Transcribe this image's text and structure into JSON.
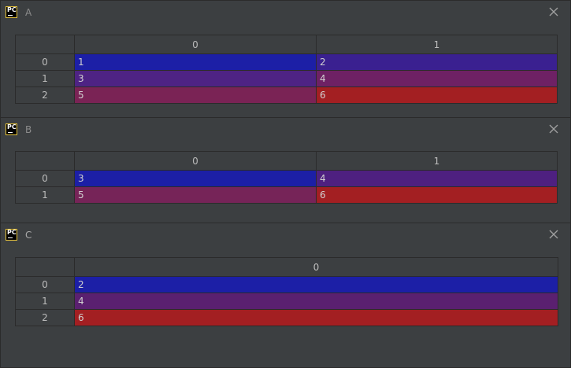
{
  "windows": [
    {
      "title": "A",
      "columns": [
        "0",
        "1"
      ],
      "rows": [
        {
          "index": "0",
          "cells": [
            {
              "value": "1",
              "color": "#1c1fa6"
            },
            {
              "value": "2",
              "color": "#3a2090"
            }
          ]
        },
        {
          "index": "1",
          "cells": [
            {
              "value": "3",
              "color": "#4e2384"
            },
            {
              "value": "4",
              "color": "#6e2164"
            }
          ]
        },
        {
          "index": "2",
          "cells": [
            {
              "value": "5",
              "color": "#7a2355"
            },
            {
              "value": "6",
              "color": "#a31f22"
            }
          ]
        }
      ]
    },
    {
      "title": "B",
      "columns": [
        "0",
        "1"
      ],
      "rows": [
        {
          "index": "0",
          "cells": [
            {
              "value": "3",
              "color": "#1c1fa6"
            },
            {
              "value": "4",
              "color": "#4e2080"
            }
          ]
        },
        {
          "index": "1",
          "cells": [
            {
              "value": "5",
              "color": "#762458"
            },
            {
              "value": "6",
              "color": "#a31f22"
            }
          ]
        }
      ]
    },
    {
      "title": "C",
      "columns": [
        "0"
      ],
      "rows": [
        {
          "index": "0",
          "cells": [
            {
              "value": "2",
              "color": "#1c1fa6"
            }
          ]
        },
        {
          "index": "1",
          "cells": [
            {
              "value": "4",
              "color": "#5a2070"
            }
          ]
        },
        {
          "index": "2",
          "cells": [
            {
              "value": "6",
              "color": "#a31f22"
            }
          ]
        }
      ]
    }
  ],
  "icons": {
    "app": "pycharm-icon",
    "app_label": "PC",
    "close": "close-icon"
  },
  "colors": {
    "window_bg": "#3c3f41",
    "border": "#2b2b2b",
    "text": "#bbbbbb"
  }
}
